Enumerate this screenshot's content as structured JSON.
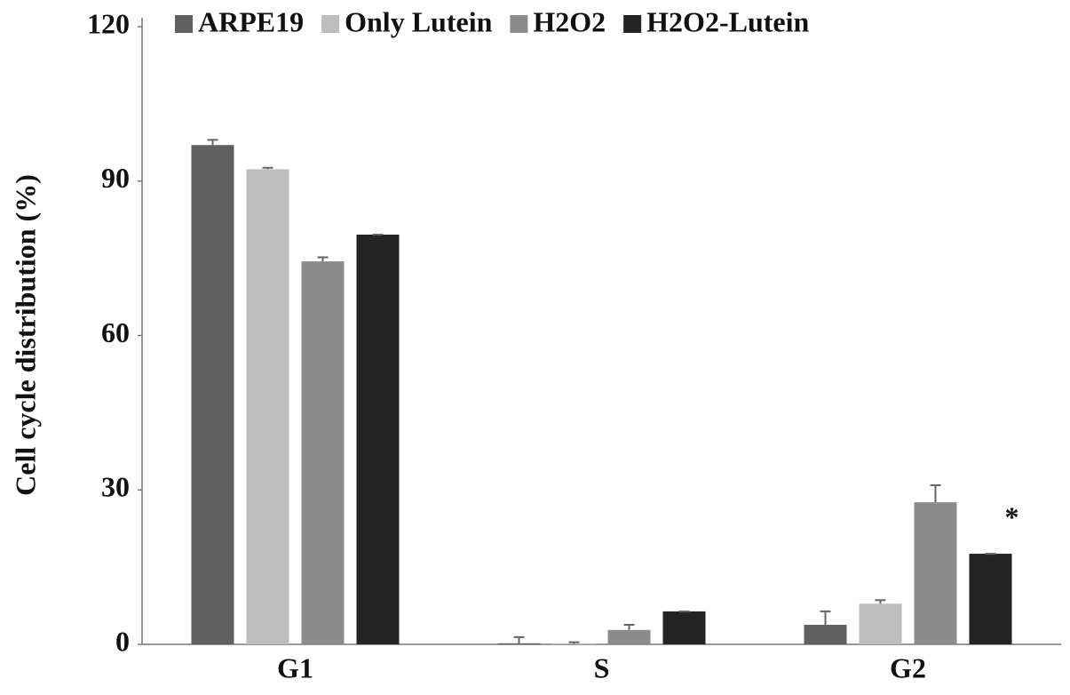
{
  "chart_data": {
    "type": "bar",
    "y_label": "Cell cycle distribution (%)",
    "categories": [
      "G1",
      "S",
      "G2"
    ],
    "series": [
      {
        "name": "ARPE19",
        "color": "#606060",
        "values": [
          97,
          0.2,
          3.8
        ],
        "errors": [
          1,
          1.2,
          2.6
        ]
      },
      {
        "name": "Only Lutein",
        "color": "#bdbdbd",
        "values": [
          92.3,
          0.1,
          7.9
        ],
        "errors": [
          0.3,
          0.3,
          0.7
        ]
      },
      {
        "name": "H2O2",
        "color": "#8c8c8c",
        "values": [
          74.4,
          2.8,
          27.6
        ],
        "errors": [
          0.8,
          1,
          3.3
        ]
      },
      {
        "name": "H2O2-Lutein",
        "color": "#232323",
        "values": [
          79.6,
          6.4,
          17.6
        ],
        "errors": [
          0,
          0,
          0
        ]
      }
    ],
    "annotation": "*",
    "ylim": [
      0,
      120
    ],
    "yticks": [
      0,
      30,
      60,
      90,
      120
    ],
    "grid": false,
    "legend": "top"
  }
}
